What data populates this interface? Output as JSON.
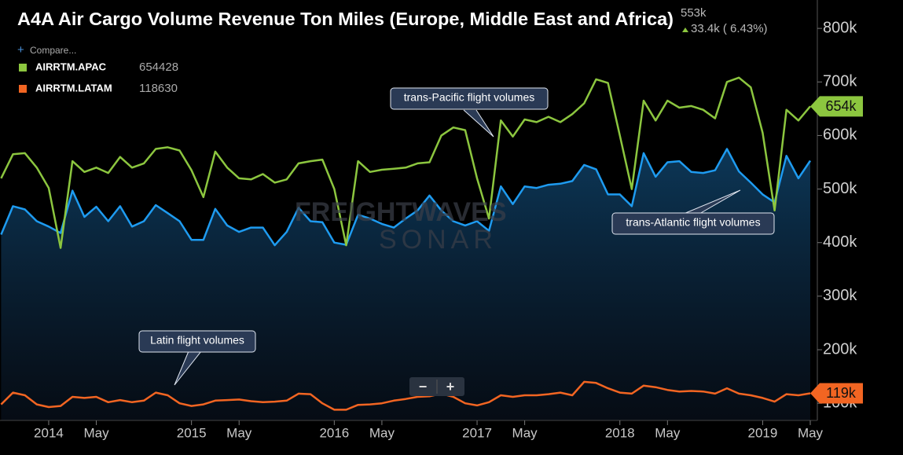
{
  "chart_data": {
    "type": "line",
    "title": "A4A Air Cargo Volume Revenue Ton Miles (Europe, Middle East and Africa)",
    "last_label": "553k",
    "change": "33.4k ( 6.43%)",
    "compare": "Compare...",
    "watermark": [
      "FREIGHTWAVES",
      "SONAR"
    ],
    "annotations": [
      "trans-Pacific flight volumes",
      "trans-Atlantic flight volumes",
      "Latin flight volumes"
    ],
    "x": [
      "2013-09",
      "2013-10",
      "2013-11",
      "2013-12",
      "2014-01",
      "2014-02",
      "2014-03",
      "2014-04",
      "2014-05",
      "2014-06",
      "2014-07",
      "2014-08",
      "2014-09",
      "2014-10",
      "2014-11",
      "2014-12",
      "2015-01",
      "2015-02",
      "2015-03",
      "2015-04",
      "2015-05",
      "2015-06",
      "2015-07",
      "2015-08",
      "2015-09",
      "2015-10",
      "2015-11",
      "2015-12",
      "2016-01",
      "2016-02",
      "2016-03",
      "2016-04",
      "2016-05",
      "2016-06",
      "2016-07",
      "2016-08",
      "2016-09",
      "2016-10",
      "2016-11",
      "2016-12",
      "2017-01",
      "2017-02",
      "2017-03",
      "2017-04",
      "2017-05",
      "2017-06",
      "2017-07",
      "2017-08",
      "2017-09",
      "2017-10",
      "2017-11",
      "2017-12",
      "2018-01",
      "2018-02",
      "2018-03",
      "2018-04",
      "2018-05",
      "2018-06",
      "2018-07",
      "2018-08",
      "2018-09",
      "2018-10",
      "2018-11",
      "2018-12",
      "2019-01",
      "2019-02",
      "2019-03",
      "2019-04",
      "2019-05"
    ],
    "series": [
      {
        "color": "#1e9bf0",
        "area": true,
        "values": [
          415000,
          468000,
          462000,
          440000,
          430000,
          418000,
          497000,
          448000,
          467000,
          440000,
          468000,
          430000,
          440000,
          470000,
          455000,
          440000,
          405000,
          405000,
          463000,
          432000,
          420000,
          428000,
          428000,
          395000,
          420000,
          465000,
          440000,
          438000,
          400000,
          396000,
          452000,
          445000,
          435000,
          428000,
          445000,
          460000,
          488000,
          460000,
          440000,
          432000,
          440000,
          422000,
          505000,
          472000,
          505000,
          502000,
          508000,
          510000,
          515000,
          545000,
          537000,
          490000,
          490000,
          468000,
          567000,
          523000,
          550000,
          552000,
          532000,
          530000,
          535000,
          575000,
          533000,
          512000,
          490000,
          475000,
          562000,
          520000,
          553000
        ]
      },
      {
        "name": "AIRRTM.APAC",
        "color": "#8cc63f",
        "end_label": "654k",
        "values": [
          520000,
          565000,
          567000,
          540000,
          502000,
          390000,
          552000,
          532000,
          540000,
          530000,
          560000,
          540000,
          548000,
          575000,
          578000,
          572000,
          535000,
          485000,
          570000,
          540000,
          520000,
          518000,
          528000,
          512000,
          518000,
          548000,
          552000,
          555000,
          500000,
          395000,
          552000,
          532000,
          536000,
          538000,
          540000,
          548000,
          550000,
          600000,
          615000,
          610000,
          520000,
          445000,
          628000,
          598000,
          630000,
          625000,
          635000,
          625000,
          640000,
          660000,
          705000,
          698000,
          600000,
          500000,
          665000,
          628000,
          665000,
          652000,
          655000,
          648000,
          632000,
          700000,
          708000,
          690000,
          605000,
          460000,
          648000,
          628000,
          654428
        ]
      },
      {
        "name": "AIRRTM.LATAM",
        "color": "#f26522",
        "end_label": "119k",
        "values": [
          98000,
          120000,
          115000,
          98000,
          93000,
          95000,
          112000,
          110000,
          112000,
          102000,
          106000,
          102000,
          105000,
          120000,
          115000,
          100000,
          95000,
          98000,
          105000,
          106000,
          107000,
          104000,
          102000,
          103000,
          105000,
          118000,
          117000,
          100000,
          88000,
          88000,
          97000,
          98000,
          100000,
          105000,
          108000,
          112000,
          113000,
          118000,
          112000,
          100000,
          96000,
          102000,
          115000,
          112000,
          115000,
          115000,
          117000,
          120000,
          115000,
          140000,
          138000,
          128000,
          120000,
          118000,
          133000,
          130000,
          125000,
          122000,
          123000,
          122000,
          118000,
          128000,
          118000,
          115000,
          110000,
          103000,
          117000,
          115000,
          118630
        ]
      }
    ],
    "xlim": [
      "2013-09",
      "2019-05"
    ],
    "xticks": [
      {
        "value": "2014-01",
        "label": "2014"
      },
      {
        "value": "2014-05",
        "label": "May"
      },
      {
        "value": "2015-01",
        "label": "2015"
      },
      {
        "value": "2015-05",
        "label": "May"
      },
      {
        "value": "2016-01",
        "label": "2016"
      },
      {
        "value": "2016-05",
        "label": "May"
      },
      {
        "value": "2017-01",
        "label": "2017"
      },
      {
        "value": "2017-05",
        "label": "May"
      },
      {
        "value": "2018-01",
        "label": "2018"
      },
      {
        "value": "2018-05",
        "label": "May"
      },
      {
        "value": "2019-01",
        "label": "2019"
      },
      {
        "value": "2019-05",
        "label": "May"
      }
    ],
    "ylim": [
      68000,
      853000
    ],
    "yticks": [
      {
        "value": 100000,
        "label": "100k"
      },
      {
        "value": 200000,
        "label": "200k"
      },
      {
        "value": 300000,
        "label": "300k"
      },
      {
        "value": 400000,
        "label": "400k"
      },
      {
        "value": 500000,
        "label": "500k"
      },
      {
        "value": 600000,
        "label": "600k"
      },
      {
        "value": 700000,
        "label": "700k"
      },
      {
        "value": 800000,
        "label": "800k"
      }
    ],
    "zoom": [
      "−",
      "+"
    ]
  }
}
